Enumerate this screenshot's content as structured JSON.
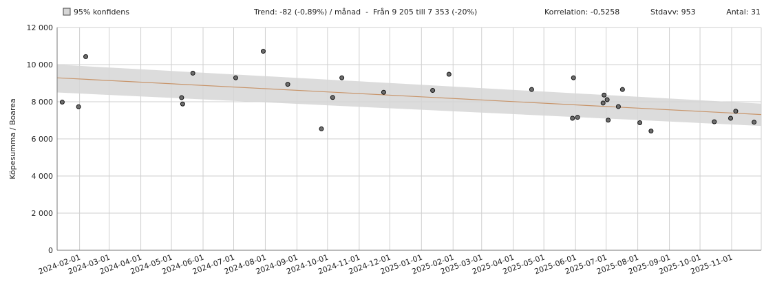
{
  "legend": {
    "label": "95% konfidens"
  },
  "stats": {
    "trend": "Trend: -82 (-0,89%) / månad  -  Från 9 205 till 7 353 (-20%)",
    "korrelation": "Korrelation: -0,5258",
    "stdavv": "Stdavv: 953",
    "antal": "Antal: 31"
  },
  "chart_data": {
    "type": "scatter",
    "title": "",
    "xlabel": "",
    "ylabel": "Köpesumma / Boarea",
    "xlim": [
      "2024-01-10",
      "2025-11-30"
    ],
    "ylim": [
      0,
      12000
    ],
    "y_ticks": [
      0,
      2000,
      4000,
      6000,
      8000,
      10000,
      12000
    ],
    "y_tick_labels": [
      "0",
      "2 000",
      "4 000",
      "6 000",
      "8 000",
      "10 000",
      "12 000"
    ],
    "x_ticks": [
      "2024-02-01",
      "2024-03-01",
      "2024-04-01",
      "2024-05-01",
      "2024-06-01",
      "2024-07-01",
      "2024-08-01",
      "2024-09-01",
      "2024-10-01",
      "2024-11-01",
      "2024-12-01",
      "2025-01-01",
      "2025-02-01",
      "2025-03-01",
      "2025-04-01",
      "2025-05-01",
      "2025-06-01",
      "2025-07-01",
      "2025-08-01",
      "2025-09-01",
      "2025-10-01",
      "2025-11-01"
    ],
    "grid": true,
    "points": [
      {
        "x": "2024-01-15",
        "y": 7980
      },
      {
        "x": "2024-01-31",
        "y": 7730
      },
      {
        "x": "2024-02-07",
        "y": 10430
      },
      {
        "x": "2024-05-11",
        "y": 8220
      },
      {
        "x": "2024-05-12",
        "y": 7880
      },
      {
        "x": "2024-05-22",
        "y": 9540
      },
      {
        "x": "2024-07-03",
        "y": 9290
      },
      {
        "x": "2024-07-30",
        "y": 10720
      },
      {
        "x": "2024-08-23",
        "y": 8940
      },
      {
        "x": "2024-09-25",
        "y": 6540
      },
      {
        "x": "2024-10-06",
        "y": 8230
      },
      {
        "x": "2024-10-15",
        "y": 9290
      },
      {
        "x": "2024-11-25",
        "y": 8510
      },
      {
        "x": "2025-01-12",
        "y": 8610
      },
      {
        "x": "2025-01-28",
        "y": 9480
      },
      {
        "x": "2025-04-19",
        "y": 8660
      },
      {
        "x": "2025-05-29",
        "y": 7110
      },
      {
        "x": "2025-05-30",
        "y": 9290
      },
      {
        "x": "2025-06-03",
        "y": 7160
      },
      {
        "x": "2025-06-28",
        "y": 7930
      },
      {
        "x": "2025-06-29",
        "y": 8360
      },
      {
        "x": "2025-07-02",
        "y": 8110
      },
      {
        "x": "2025-07-03",
        "y": 7010
      },
      {
        "x": "2025-07-13",
        "y": 7740
      },
      {
        "x": "2025-07-17",
        "y": 8660
      },
      {
        "x": "2025-08-03",
        "y": 6870
      },
      {
        "x": "2025-08-14",
        "y": 6420
      },
      {
        "x": "2025-10-15",
        "y": 6920
      },
      {
        "x": "2025-10-31",
        "y": 7110
      },
      {
        "x": "2025-11-05",
        "y": 7490
      },
      {
        "x": "2025-11-23",
        "y": 6900
      }
    ],
    "trend_line": {
      "start": {
        "x": "2024-01-10",
        "y": 9290
      },
      "end": {
        "x": "2025-11-30",
        "y": 7310
      }
    },
    "confidence_band": {
      "upper": [
        {
          "x": "2024-01-10",
          "y": 10000
        },
        {
          "x": "2025-11-30",
          "y": 7900
        }
      ],
      "lower": [
        {
          "x": "2024-01-10",
          "y": 8500
        },
        {
          "x": "2025-11-30",
          "y": 6700
        }
      ]
    },
    "colors": {
      "band": "#d6d6d6",
      "trend": "#c8956b",
      "point_fill": "#6d6d6d",
      "point_stroke": "#111111",
      "grid": "#cfcfcf"
    }
  }
}
